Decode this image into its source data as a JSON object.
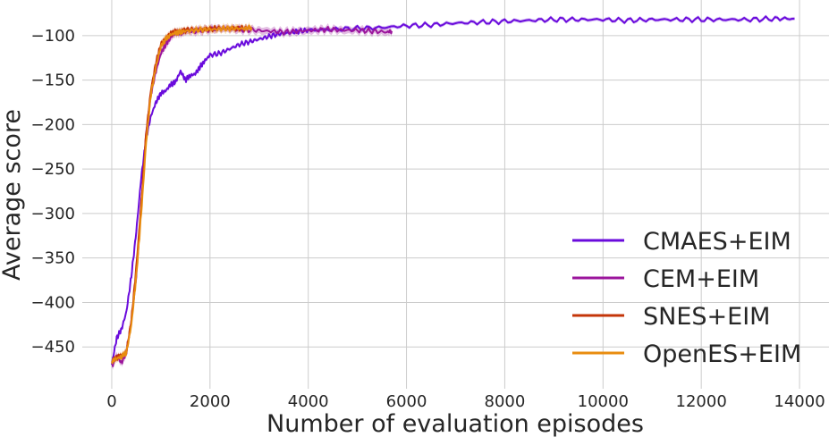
{
  "chart_data": {
    "type": "line",
    "title": "",
    "xlabel": "Number of evaluation episodes",
    "ylabel": "Average score",
    "xlim": [
      -600,
      14600
    ],
    "ylim": [
      -497,
      -60
    ],
    "xticks": [
      0,
      2000,
      4000,
      6000,
      8000,
      10000,
      12000,
      14000
    ],
    "yticks": [
      -100,
      -150,
      -200,
      -250,
      -300,
      -350,
      -400,
      -450
    ],
    "grid": true,
    "legend_position": "lower-right",
    "series": [
      {
        "name": "CMAES+EIM",
        "color": "#6a0bdc",
        "band": 2,
        "x": [
          0,
          100,
          200,
          300,
          400,
          500,
          600,
          700,
          800,
          900,
          1000,
          1100,
          1200,
          1300,
          1400,
          1500,
          1600,
          1700,
          1800,
          1900,
          2000,
          2200,
          2400,
          2600,
          2800,
          3000,
          3200,
          3400,
          3600,
          3800,
          4000,
          4500,
          5000,
          5500,
          6000,
          6500,
          7000,
          7500,
          8000,
          8500,
          9000,
          9500,
          10000,
          10500,
          11000,
          11500,
          12000,
          12500,
          13000,
          13500,
          13900
        ],
        "y": [
          -470,
          -440,
          -430,
          -410,
          -370,
          -320,
          -260,
          -215,
          -190,
          -175,
          -165,
          -162,
          -155,
          -152,
          -140,
          -150,
          -145,
          -143,
          -135,
          -128,
          -122,
          -120,
          -115,
          -110,
          -107,
          -104,
          -101,
          -98,
          -97,
          -95,
          -94,
          -93,
          -92,
          -91,
          -89,
          -88,
          -86,
          -85,
          -84,
          -83,
          -82,
          -82,
          -82,
          -83,
          -82,
          -82,
          -82,
          -82,
          -82,
          -81,
          -81
        ]
      },
      {
        "name": "CEM+EIM",
        "color": "#9b159c",
        "band": 4,
        "x": [
          0,
          100,
          200,
          300,
          400,
          500,
          600,
          700,
          800,
          900,
          1000,
          1100,
          1200,
          1300,
          1400,
          1500,
          1700,
          2000,
          2300,
          2600,
          2900,
          3200,
          3500,
          3800,
          4100,
          4400,
          4700,
          5000,
          5300,
          5600,
          5700
        ],
        "y": [
          -472,
          -460,
          -468,
          -455,
          -420,
          -370,
          -290,
          -210,
          -165,
          -140,
          -120,
          -110,
          -102,
          -97,
          -97,
          -95,
          -95,
          -93,
          -92,
          -93,
          -94,
          -95,
          -96,
          -95,
          -94,
          -93,
          -94,
          -94,
          -95,
          -96,
          -95
        ]
      },
      {
        "name": "SNES+EIM",
        "color": "#c43508",
        "band": 3,
        "x": [
          0,
          100,
          200,
          300,
          400,
          500,
          600,
          700,
          800,
          900,
          1000,
          1100,
          1200,
          1300,
          1400,
          1500,
          1700,
          1900,
          2100,
          2300,
          2500,
          2700,
          2850
        ],
        "y": [
          -465,
          -462,
          -460,
          -455,
          -420,
          -360,
          -290,
          -210,
          -160,
          -130,
          -110,
          -102,
          -98,
          -95,
          -95,
          -94,
          -93,
          -93,
          -92,
          -92,
          -92,
          -92,
          -91
        ]
      },
      {
        "name": "OpenES+EIM",
        "color": "#e88c0f",
        "band": 4,
        "x": [
          0,
          100,
          200,
          300,
          400,
          500,
          600,
          700,
          800,
          900,
          1000,
          1100,
          1200,
          1300,
          1400,
          1500,
          1700,
          1900,
          2100,
          2300,
          2500,
          2700,
          2850
        ],
        "y": [
          -466,
          -463,
          -461,
          -456,
          -425,
          -370,
          -300,
          -220,
          -165,
          -135,
          -112,
          -104,
          -99,
          -97,
          -96,
          -95,
          -94,
          -93,
          -93,
          -92,
          -92,
          -92,
          -91
        ]
      }
    ]
  }
}
